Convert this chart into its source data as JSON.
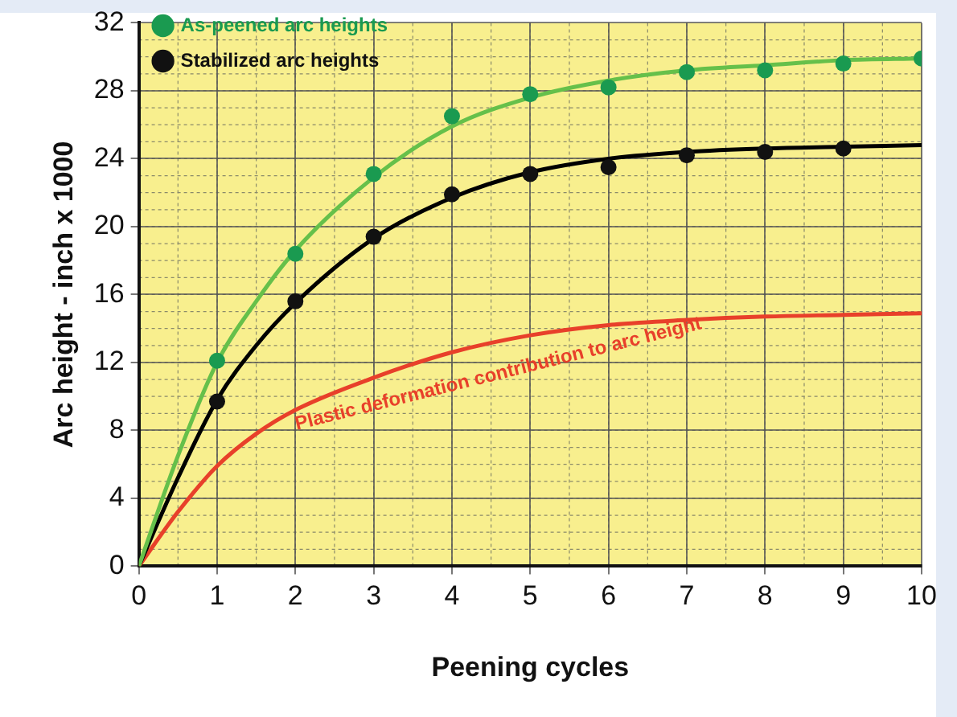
{
  "chart_data": {
    "type": "line",
    "xlabel": "Peening cycles",
    "ylabel": "Arc height - inch x 1000",
    "xlim": [
      0,
      10
    ],
    "ylim": [
      0,
      32
    ],
    "xticks": [
      0,
      1,
      2,
      3,
      4,
      5,
      6,
      7,
      8,
      9,
      10
    ],
    "yticks": [
      0,
      4,
      8,
      12,
      16,
      20,
      24,
      28,
      32
    ],
    "grid": true,
    "legend": "top left",
    "series": [
      {
        "type": "line",
        "color": "#66c04a",
        "x": [
          0,
          0.5,
          1,
          1.5,
          2,
          3,
          4,
          5,
          6,
          7,
          8,
          9,
          10
        ],
        "values": [
          0,
          6.5,
          12.0,
          15.6,
          18.6,
          22.9,
          25.9,
          27.6,
          28.6,
          29.2,
          29.5,
          29.8,
          29.9
        ]
      },
      {
        "type": "line",
        "color": "#000000",
        "x": [
          0,
          0.5,
          1,
          1.5,
          2,
          3,
          4,
          5,
          6,
          7,
          8,
          9,
          10
        ],
        "values": [
          0,
          5.2,
          9.8,
          13.0,
          15.5,
          19.3,
          21.7,
          23.2,
          24.0,
          24.4,
          24.6,
          24.7,
          24.8
        ]
      },
      {
        "type": "line",
        "name": "Plastic deformation contribution to arc height",
        "color": "#e8402a",
        "x": [
          0,
          0.5,
          1,
          1.5,
          2,
          3,
          4,
          5,
          6,
          7,
          8,
          9,
          10
        ],
        "values": [
          0,
          3.2,
          5.9,
          7.8,
          9.2,
          11.1,
          12.6,
          13.6,
          14.2,
          14.5,
          14.7,
          14.8,
          14.9
        ]
      },
      {
        "type": "scatter",
        "name": "As-peened arc heights",
        "color": "#1a9a50",
        "x": [
          1,
          2,
          3,
          4,
          5,
          6,
          7,
          8,
          9,
          10
        ],
        "values": [
          12.1,
          18.4,
          23.1,
          26.5,
          27.8,
          28.2,
          29.1,
          29.2,
          29.6,
          29.9
        ]
      },
      {
        "type": "scatter",
        "name": "Stabilized arc heights",
        "color": "#111111",
        "x": [
          1,
          2,
          3,
          4,
          5,
          6,
          7,
          8,
          9
        ],
        "values": [
          9.7,
          15.6,
          19.4,
          21.9,
          23.1,
          23.5,
          24.2,
          24.4,
          24.6
        ]
      }
    ]
  }
}
